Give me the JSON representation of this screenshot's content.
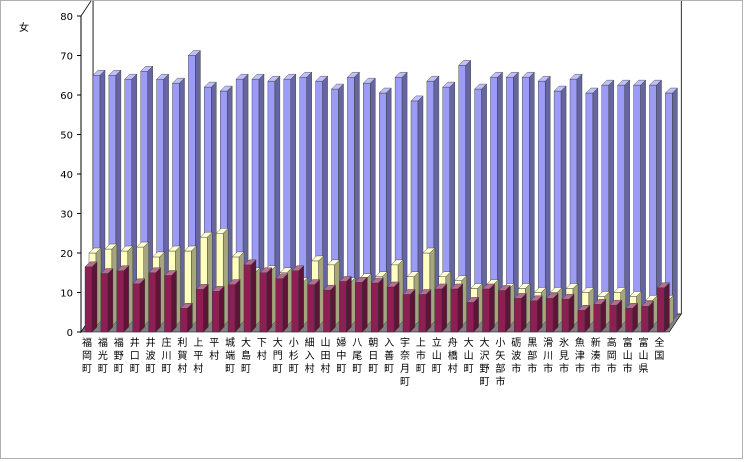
{
  "chart_data": {
    "type": "bar",
    "chart_subtype": "3d-clustered-column",
    "ylabel": "女",
    "ylim": [
      0,
      80
    ],
    "yticks": [
      0,
      10,
      20,
      30,
      40,
      50,
      60,
      70,
      80
    ],
    "grid": false,
    "legend": "none",
    "categories": [
      "福岡町",
      "福光町",
      "福野町",
      "井口町",
      "井波町",
      "庄川町",
      "利賀村",
      "上平村",
      "平村",
      "城端町",
      "大島町",
      "下村",
      "大門町",
      "小杉町",
      "細入村",
      "山田村",
      "婦中町",
      "八尾町",
      "朝日町",
      "入善町",
      "宇奈月町",
      "上市町",
      "立山町",
      "舟橋村",
      "大山町",
      "大沢野町",
      "小矢部市",
      "砺波市",
      "黒部市",
      "滑川市",
      "氷見市",
      "魚津市",
      "新湊市",
      "高岡市",
      "富山市",
      "富山県",
      "全国"
    ],
    "series": [
      {
        "color": "#8e1f55",
        "values": [
          16.5,
          14.8,
          15.5,
          12.2,
          15.0,
          14.3,
          6.0,
          10.8,
          10.3,
          12.0,
          17.0,
          15.0,
          13.5,
          15.5,
          12.0,
          10.6,
          12.8,
          12.6,
          12.4,
          11.4,
          9.5,
          9.5,
          10.9,
          10.9,
          7.5,
          10.9,
          10.5,
          8.5,
          7.9,
          8.5,
          8.3,
          5.5,
          7.0,
          6.8,
          6.0,
          6.5,
          11.2
        ]
      },
      {
        "color": "#ffffc0",
        "values": [
          20.0,
          21.0,
          20.5,
          21.5,
          19.0,
          20.5,
          20.5,
          24.0,
          25.0,
          19.0,
          15.0,
          15.5,
          15.0,
          12.5,
          18.0,
          17.0,
          12.5,
          13.5,
          14.0,
          17.0,
          14.0,
          20.0,
          14.0,
          13.0,
          11.0,
          12.0,
          11.0,
          11.0,
          10.0,
          10.0,
          11.0,
          10.0,
          9.0,
          10.0,
          9.0,
          8.0,
          8.0
        ]
      },
      {
        "color": "#9c9cf6",
        "values": [
          65.0,
          65.0,
          64.0,
          66.0,
          64.0,
          63.0,
          70.0,
          62.0,
          61.0,
          64.0,
          64.0,
          63.5,
          64.0,
          64.5,
          63.5,
          61.5,
          64.5,
          63.0,
          60.5,
          64.5,
          58.5,
          63.5,
          62.0,
          67.5,
          61.5,
          64.5,
          64.5,
          64.5,
          63.5,
          61.0,
          64.0,
          60.5,
          62.5,
          62.5,
          62.5,
          62.5,
          60.5
        ]
      }
    ]
  }
}
